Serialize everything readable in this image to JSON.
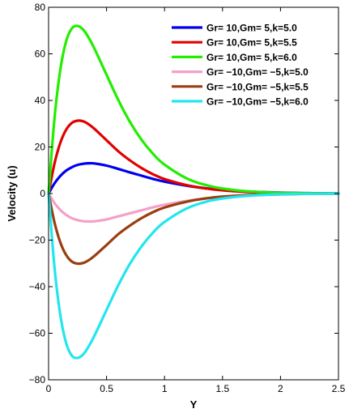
{
  "chart_data": {
    "type": "line",
    "title": "",
    "xlabel": "Y",
    "ylabel": "Velocity (u)",
    "xlim": [
      0,
      2.5
    ],
    "ylim": [
      -80,
      80
    ],
    "xticks": [
      0,
      0.5,
      1,
      1.5,
      2,
      2.5
    ],
    "xtick_labels": [
      "0",
      "0.5",
      "1",
      "1.5",
      "2",
      "2.5"
    ],
    "yticks": [
      -80,
      -60,
      -40,
      -20,
      0,
      20,
      40,
      60,
      80
    ],
    "ytick_labels": [
      "−80",
      "−60",
      "−40",
      "−20",
      "0",
      "20",
      "40",
      "60",
      "80"
    ],
    "grid": false,
    "legend_position": "top-right",
    "x": [
      0,
      0.05,
      0.1,
      0.15,
      0.2,
      0.25,
      0.3,
      0.35,
      0.4,
      0.5,
      0.6,
      0.7,
      0.8,
      0.9,
      1.0,
      1.2,
      1.4,
      1.6,
      1.8,
      2.0,
      2.2,
      2.5
    ],
    "series": [
      {
        "name": "Gr=  10,Gm=  5,k=5.0",
        "color": "#0000ee",
        "values": [
          0,
          4.3,
          7.5,
          9.8,
          11.3,
          12.3,
          12.8,
          13.0,
          12.9,
          12.0,
          10.6,
          9.1,
          7.7,
          6.3,
          5.1,
          3.3,
          2.0,
          1.2,
          0.7,
          0.4,
          0.2,
          0
        ]
      },
      {
        "name": "Gr=  10,Gm=  5,k=5.5",
        "color": "#e00000",
        "values": [
          0,
          12.7,
          21.6,
          27.3,
          30.3,
          31.3,
          31.0,
          29.6,
          27.6,
          22.9,
          18.2,
          14.3,
          11.0,
          8.3,
          6.2,
          3.5,
          1.9,
          1.0,
          0.5,
          0.3,
          0.15,
          0
        ]
      },
      {
        "name": "Gr=  10,Gm=  5,k=6.0",
        "color": "#22ee00",
        "values": [
          0,
          31.8,
          52.8,
          65.2,
          70.9,
          72.0,
          70.3,
          66.6,
          61.8,
          51.0,
          40.3,
          30.9,
          23.2,
          17.1,
          12.4,
          6.3,
          3.1,
          1.5,
          0.7,
          0.3,
          0.15,
          0
        ]
      },
      {
        "name": "Gr= −10,Gm= −5,k=5.0",
        "color": "#f4a0c8",
        "values": [
          0,
          -4.0,
          -7.0,
          -9.1,
          -10.6,
          -11.4,
          -11.9,
          -12.0,
          -11.9,
          -11.1,
          -9.8,
          -8.5,
          -7.2,
          -5.9,
          -4.8,
          -3.1,
          -1.9,
          -1.1,
          -0.7,
          -0.4,
          -0.2,
          0
        ]
      },
      {
        "name": "Gr= −10,Gm= −5,k=5.5",
        "color": "#9a3e10",
        "values": [
          0,
          -12.2,
          -20.8,
          -26.3,
          -29.2,
          -30.1,
          -29.8,
          -28.5,
          -26.6,
          -22.1,
          -17.5,
          -13.8,
          -10.6,
          -8.0,
          -6.0,
          -3.4,
          -1.8,
          -1.0,
          -0.5,
          -0.3,
          -0.15,
          0
        ]
      },
      {
        "name": "Gr= −10,Gm= −5,k=6.0",
        "color": "#22e6ee",
        "values": [
          0,
          -31.2,
          -51.8,
          -64.0,
          -69.6,
          -70.6,
          -69.0,
          -65.3,
          -60.6,
          -50.0,
          -39.5,
          -30.3,
          -22.8,
          -16.8,
          -12.2,
          -6.2,
          -3.0,
          -1.5,
          -0.7,
          -0.3,
          -0.15,
          0
        ]
      }
    ]
  }
}
